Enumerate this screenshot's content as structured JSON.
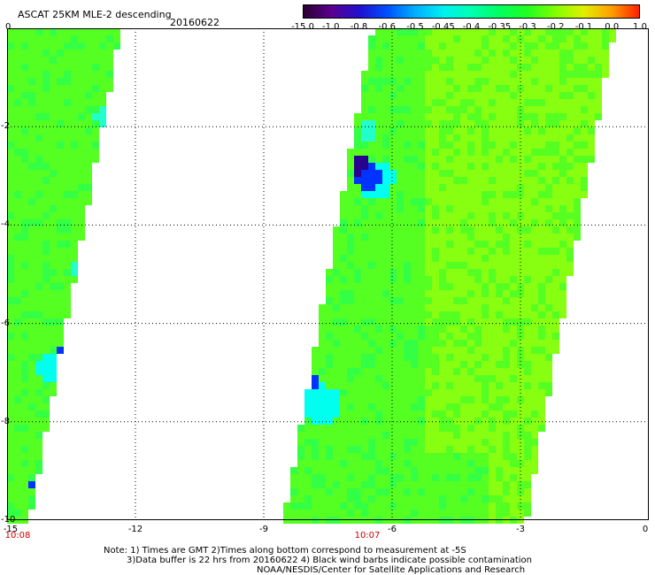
{
  "header": {
    "title": "ASCAT 25KM MLE-2 descending",
    "date": "20160622"
  },
  "colorbar": {
    "ticks": [
      "-15.0",
      "-1.0",
      "-0.8",
      "-0.6",
      "-0.5",
      "-0.45",
      "-0.4",
      "-0.35",
      "-0.3",
      "-0.2",
      "-0.1",
      "0.0",
      "1.0"
    ],
    "colors": [
      "#2a0030",
      "#5a0090",
      "#2010d0",
      "#0050ff",
      "#00b0ff",
      "#00f0f0",
      "#00ffb0",
      "#00ff60",
      "#20ff20",
      "#80ff00",
      "#e0f000",
      "#ffa000",
      "#ff2000"
    ]
  },
  "map": {
    "x_labels": [
      "-15",
      "-12",
      "-9",
      "-6",
      "-3",
      "0"
    ],
    "y_labels": [
      "0",
      "-2",
      "-4",
      "-6",
      "-8",
      "-10"
    ],
    "x_range": [
      -15,
      0
    ],
    "y_range": [
      0,
      -10
    ],
    "pass_times": [
      "10:08",
      "10:07"
    ],
    "swath_colors": {
      "base": "#55ff22",
      "light": "#88ff11",
      "mid": "#33ff44",
      "cyan": "#22ffcc",
      "cyan2": "#00ffee",
      "blue": "#0033ff",
      "darkblue": "#2a0090"
    }
  },
  "notes": {
    "line1": "Note: 1) Times are GMT  2)Times along bottom correspond to measurement at  -5S",
    "line2": "3)Data buffer is 22 hrs from 20160622  4) Black wind barbs indicate possible contamination",
    "line3": "NOAA/NESDIS/Center for Satellite Applications and Research"
  }
}
